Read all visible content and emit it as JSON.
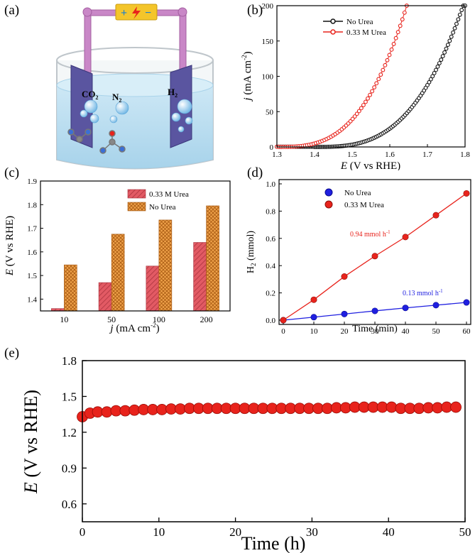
{
  "panels": {
    "a": {
      "label": "(a)",
      "species": [
        "CO",
        "2",
        "N",
        "2",
        "H",
        "2"
      ],
      "battery_signs": [
        "+",
        "−"
      ]
    },
    "b": {
      "label": "(b)"
    },
    "c": {
      "label": "(c)"
    },
    "d": {
      "label": "(d)"
    },
    "e": {
      "label": "(e)"
    }
  },
  "colors": {
    "red": "#e8231c",
    "black": "#111111",
    "blue": "#1f1fe0",
    "orange": "#f0a24a",
    "pink": "#e25a64",
    "electrode": "#5a55a0",
    "rod": "#c987c7",
    "battery": "#f4c52a"
  },
  "chart_data": [
    {
      "panel": "b",
      "type": "scatter",
      "xlabel_italic": "E",
      "xlabel_rest": " (V vs RHE)",
      "ylabel_italic": "j",
      "ylabel_rest": " (mA cm",
      "ylabel_sup": "-2",
      "ylabel_close": ")",
      "xlim": [
        1.3,
        1.8
      ],
      "ylim": [
        0,
        200
      ],
      "xticks": [
        "1.3",
        "1.4",
        "1.5",
        "1.6",
        "1.7",
        "1.8"
      ],
      "yticks": [
        "0",
        "50",
        "100",
        "150",
        "200"
      ],
      "legend_position": "top-left",
      "series": [
        {
          "name": "No Urea",
          "color": "#111111",
          "onset": 1.4,
          "x_at_200": 1.795,
          "x_end": 1.8
        },
        {
          "name": "0.33 M Urea",
          "color": "#e8231c",
          "onset": 1.3,
          "x_at_200": 1.645,
          "x_end": 1.645
        }
      ]
    },
    {
      "panel": "c",
      "type": "bar",
      "xlabel_italic": "j",
      "xlabel_rest": " (mA cm",
      "xlabel_sup": "-2",
      "xlabel_close": ")",
      "ylabel_italic": "E",
      "ylabel_rest": " (V vs RHE)",
      "categories": [
        "10",
        "50",
        "100",
        "200"
      ],
      "ylim": [
        1.35,
        1.9
      ],
      "yticks": [
        "1.4",
        "1.5",
        "1.6",
        "1.7",
        "1.8",
        "1.9"
      ],
      "legend_position": "top-right",
      "series": [
        {
          "name": "0.33 M Urea",
          "values": [
            1.36,
            1.47,
            1.54,
            1.64
          ],
          "color": "#e25a64"
        },
        {
          "name": "No Urea",
          "values": [
            1.545,
            1.675,
            1.735,
            1.795
          ],
          "color": "#f0a24a"
        }
      ]
    },
    {
      "panel": "d",
      "type": "line",
      "xlabel": "Time (min)",
      "ylabel_main": "H",
      "ylabel_sub": "2",
      "ylabel_rest": " (mmol)",
      "xlim": [
        0,
        60
      ],
      "ylim": [
        0,
        1.0
      ],
      "xticks": [
        "0",
        "10",
        "20",
        "30",
        "40",
        "50",
        "60"
      ],
      "yticks": [
        "0.0",
        "0.2",
        "0.4",
        "0.6",
        "0.8",
        "1.0"
      ],
      "legend_position": "top-left",
      "x": [
        0,
        10,
        20,
        30,
        40,
        50,
        60
      ],
      "series": [
        {
          "name": "No Urea",
          "values": [
            0.0,
            0.022,
            0.045,
            0.068,
            0.09,
            0.11,
            0.13
          ],
          "color": "#1f1fe0",
          "annotation": "0.13 mmol h",
          "annotation_sup": "-1"
        },
        {
          "name": "0.33 M Urea",
          "values": [
            0.0,
            0.15,
            0.32,
            0.47,
            0.61,
            0.77,
            0.93
          ],
          "color": "#e8231c",
          "annotation": "0.94 mmol h",
          "annotation_sup": "-1"
        }
      ]
    },
    {
      "panel": "e",
      "type": "scatter",
      "xlabel": "Time (h)",
      "ylabel_italic": "E",
      "ylabel_rest": " (V vs RHE)",
      "xlim": [
        0,
        50
      ],
      "ylim": [
        0.45,
        1.8
      ],
      "xticks": [
        "0",
        "10",
        "20",
        "30",
        "40",
        "50"
      ],
      "yticks": [
        "0.6",
        "0.9",
        "1.2",
        "1.5",
        "1.8"
      ],
      "series": [
        {
          "name": "",
          "color": "#e8231c",
          "x": [
            0,
            1,
            2.0,
            3.2,
            4.4,
            5.6,
            6.8,
            8.0,
            9.2,
            10.4,
            11.6,
            12.8,
            14.0,
            15.2,
            16.4,
            17.6,
            18.8,
            20.0,
            21.2,
            22.4,
            23.6,
            24.8,
            26.0,
            27.2,
            28.4,
            29.6,
            30.8,
            32.0,
            33.2,
            34.4,
            35.6,
            36.8,
            38.0,
            39.2,
            40.4,
            41.6,
            42.8,
            44.0,
            45.2,
            46.4,
            47.6,
            48.8
          ],
          "values": [
            1.33,
            1.36,
            1.37,
            1.37,
            1.38,
            1.38,
            1.385,
            1.39,
            1.39,
            1.39,
            1.395,
            1.395,
            1.4,
            1.4,
            1.4,
            1.4,
            1.4,
            1.4,
            1.4,
            1.4,
            1.4,
            1.4,
            1.4,
            1.4,
            1.4,
            1.4,
            1.4,
            1.4,
            1.405,
            1.405,
            1.41,
            1.41,
            1.41,
            1.41,
            1.41,
            1.4,
            1.4,
            1.4,
            1.405,
            1.405,
            1.41,
            1.41
          ]
        }
      ]
    }
  ]
}
